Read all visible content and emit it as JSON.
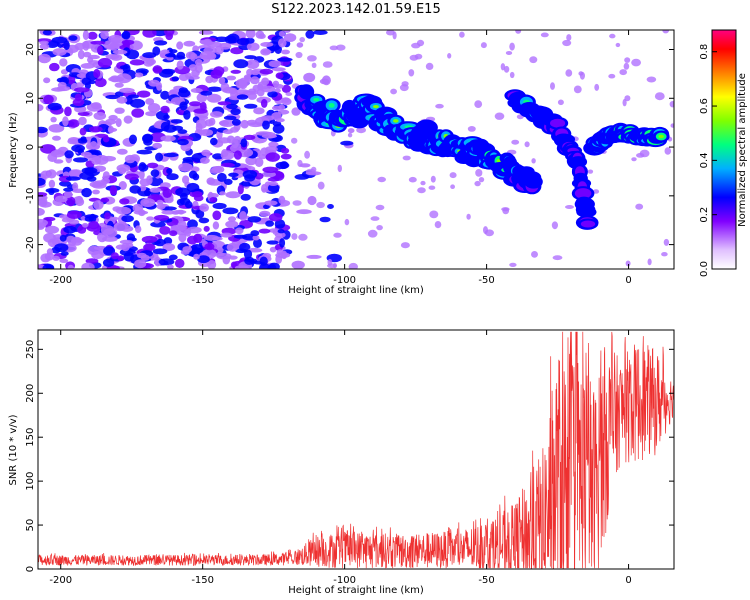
{
  "title": "S122.2023.142.01.59.E15",
  "chart_data": [
    {
      "type": "heatmap",
      "xlabel": "Height of straight line (km)",
      "ylabel": "Frequency (Hz)",
      "xlim": [
        -208,
        16
      ],
      "ylim": [
        -25,
        24
      ],
      "x_ticks": [
        "-200",
        "-150",
        "-100",
        "-50",
        "0"
      ],
      "y_ticks": [
        "20",
        "10",
        "0",
        "-10",
        "-20"
      ],
      "colorbar": {
        "label": "Normalized spectral amplitude",
        "range": [
          0.0,
          0.88
        ],
        "ticks": [
          "0.0",
          "0.2",
          "0.4",
          "0.6",
          "0.8"
        ],
        "colormap": [
          "#ffffff",
          "#e0c0ff",
          "#8000ff",
          "#0000ff",
          "#00b0ff",
          "#00ff80",
          "#80ff00",
          "#ffff00",
          "#ff8000",
          "#ff0000",
          "#ff0080"
        ]
      },
      "features": {
        "background_noise": {
          "x_range": [
            -208,
            -120
          ],
          "y_range": [
            -25,
            24
          ],
          "intensity": 0.1
        },
        "main_echo_trace": [
          {
            "x": -115,
            "y": 11,
            "amp": 0.3
          },
          {
            "x": -108,
            "y": 7,
            "amp": 0.45
          },
          {
            "x": -100,
            "y": 6,
            "amp": 0.5
          },
          {
            "x": -92,
            "y": 8,
            "amp": 0.45
          },
          {
            "x": -85,
            "y": 5,
            "amp": 0.5
          },
          {
            "x": -78,
            "y": 3,
            "amp": 0.5
          },
          {
            "x": -70,
            "y": 2,
            "amp": 0.45
          },
          {
            "x": -62,
            "y": 0,
            "amp": 0.5
          },
          {
            "x": -55,
            "y": -1,
            "amp": 0.45
          },
          {
            "x": -48,
            "y": -3,
            "amp": 0.55
          },
          {
            "x": -40,
            "y": -5,
            "amp": 0.4
          },
          {
            "x": -33,
            "y": -8,
            "amp": 0.35
          }
        ],
        "secondary_trace": [
          {
            "x": -40,
            "y": 10,
            "amp": 0.4
          },
          {
            "x": -32,
            "y": 7,
            "amp": 0.4
          },
          {
            "x": -25,
            "y": 4,
            "amp": 0.35
          },
          {
            "x": -18,
            "y": -3,
            "amp": 0.3
          },
          {
            "x": -14,
            "y": -17,
            "amp": 0.3
          }
        ],
        "strong_trace": [
          {
            "x": -12,
            "y": 0,
            "amp": 0.4
          },
          {
            "x": -8,
            "y": 2,
            "amp": 0.55
          },
          {
            "x": -2,
            "y": 3,
            "amp": 0.6
          },
          {
            "x": 5,
            "y": 2,
            "amp": 0.55
          },
          {
            "x": 12,
            "y": 2,
            "amp": 0.5
          }
        ]
      }
    },
    {
      "type": "line",
      "xlabel": "Height of straight line (km)",
      "ylabel": "SNR (10 * v/v)",
      "xlim": [
        -208,
        16
      ],
      "ylim": [
        0,
        272
      ],
      "x_ticks": [
        "-200",
        "-150",
        "-100",
        "-50",
        "0"
      ],
      "y_ticks": [
        "0",
        "50",
        "100",
        "150",
        "200",
        "250"
      ],
      "series": [
        {
          "color": "#ee3030",
          "envelope": [
            {
              "x": -208,
              "mean": 10,
              "spread": 6
            },
            {
              "x": -130,
              "mean": 10,
              "spread": 6
            },
            {
              "x": -118,
              "mean": 12,
              "spread": 8
            },
            {
              "x": -110,
              "mean": 20,
              "spread": 18
            },
            {
              "x": -100,
              "mean": 22,
              "spread": 22
            },
            {
              "x": -80,
              "mean": 20,
              "spread": 20
            },
            {
              "x": -60,
              "mean": 22,
              "spread": 22
            },
            {
              "x": -50,
              "mean": 25,
              "spread": 30
            },
            {
              "x": -40,
              "mean": 30,
              "spread": 45
            },
            {
              "x": -30,
              "mean": 50,
              "spread": 90
            },
            {
              "x": -25,
              "mean": 100,
              "spread": 150
            },
            {
              "x": -18,
              "mean": 110,
              "spread": 150
            },
            {
              "x": -12,
              "mean": 90,
              "spread": 120
            },
            {
              "x": -8,
              "mean": 150,
              "spread": 110
            },
            {
              "x": -3,
              "mean": 180,
              "spread": 60
            },
            {
              "x": 3,
              "mean": 190,
              "spread": 70
            },
            {
              "x": 10,
              "mean": 190,
              "spread": 60
            },
            {
              "x": 16,
              "mean": 195,
              "spread": 20
            }
          ]
        }
      ]
    }
  ]
}
